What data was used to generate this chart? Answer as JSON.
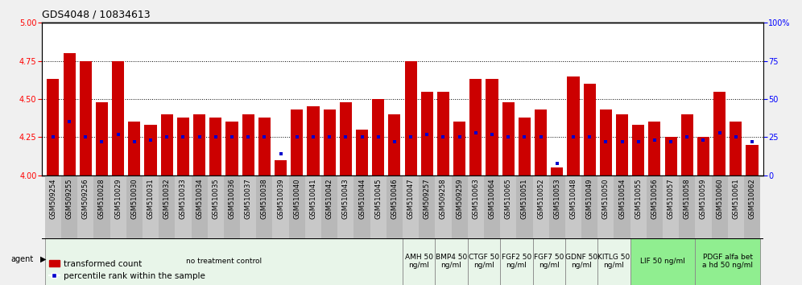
{
  "title": "GDS4048 / 10834613",
  "samples": [
    "GSM509254",
    "GSM509255",
    "GSM509256",
    "GSM510028",
    "GSM510029",
    "GSM510030",
    "GSM510031",
    "GSM510032",
    "GSM510033",
    "GSM510034",
    "GSM510035",
    "GSM510036",
    "GSM510037",
    "GSM510038",
    "GSM510039",
    "GSM510040",
    "GSM510041",
    "GSM510042",
    "GSM510043",
    "GSM510044",
    "GSM510045",
    "GSM510046",
    "GSM510047",
    "GSM509257",
    "GSM509258",
    "GSM509259",
    "GSM510063",
    "GSM510064",
    "GSM510065",
    "GSM510051",
    "GSM510052",
    "GSM510053",
    "GSM510048",
    "GSM510049",
    "GSM510050",
    "GSM510054",
    "GSM510055",
    "GSM510056",
    "GSM510057",
    "GSM510058",
    "GSM510059",
    "GSM510060",
    "GSM510061",
    "GSM510062"
  ],
  "bar_heights": [
    4.63,
    4.8,
    4.75,
    4.48,
    4.75,
    4.35,
    4.33,
    4.4,
    4.38,
    4.4,
    4.38,
    4.35,
    4.4,
    4.38,
    4.1,
    4.43,
    4.45,
    4.43,
    4.48,
    4.3,
    4.5,
    4.4,
    4.75,
    4.55,
    4.55,
    4.35,
    4.63,
    4.63,
    4.48,
    4.38,
    4.43,
    4.05,
    4.65,
    4.6,
    4.43,
    4.4,
    4.33,
    4.35,
    4.25,
    4.4,
    4.25,
    4.55,
    4.35,
    4.2
  ],
  "percentile_ranks": [
    25,
    35,
    25,
    22,
    27,
    22,
    23,
    25,
    25,
    25,
    25,
    25,
    25,
    25,
    14,
    25,
    25,
    25,
    25,
    25,
    25,
    22,
    25,
    27,
    25,
    25,
    28,
    27,
    25,
    25,
    25,
    8,
    25,
    25,
    22,
    22,
    22,
    23,
    22,
    25,
    23,
    28,
    25,
    22
  ],
  "agent_groups": [
    {
      "label": "no treatment control",
      "start": 0,
      "end": 22,
      "color": "#e8f5e9",
      "bright": false
    },
    {
      "label": "AMH 50\nng/ml",
      "start": 22,
      "end": 24,
      "color": "#e8f5e9",
      "bright": false
    },
    {
      "label": "BMP4 50\nng/ml",
      "start": 24,
      "end": 26,
      "color": "#e8f5e9",
      "bright": false
    },
    {
      "label": "CTGF 50\nng/ml",
      "start": 26,
      "end": 28,
      "color": "#e8f5e9",
      "bright": false
    },
    {
      "label": "FGF2 50\nng/ml",
      "start": 28,
      "end": 30,
      "color": "#e8f5e9",
      "bright": false
    },
    {
      "label": "FGF7 50\nng/ml",
      "start": 30,
      "end": 32,
      "color": "#e8f5e9",
      "bright": false
    },
    {
      "label": "GDNF 50\nng/ml",
      "start": 32,
      "end": 34,
      "color": "#e8f5e9",
      "bright": false
    },
    {
      "label": "KITLG 50\nng/ml",
      "start": 34,
      "end": 36,
      "color": "#e8f5e9",
      "bright": false
    },
    {
      "label": "LIF 50 ng/ml",
      "start": 36,
      "end": 40,
      "color": "#90ee90",
      "bright": true
    },
    {
      "label": "PDGF alfa bet\na hd 50 ng/ml",
      "start": 40,
      "end": 44,
      "color": "#90ee90",
      "bright": true
    }
  ],
  "ylim": [
    4.0,
    5.0
  ],
  "yticks_left": [
    4.0,
    4.25,
    4.5,
    4.75,
    5.0
  ],
  "yticks_right": [
    0,
    25,
    50,
    75,
    100
  ],
  "bar_color": "#cc0000",
  "marker_color": "#0000cc",
  "background_color": "#f0f0f0",
  "plot_bg_color": "#ffffff",
  "title_fontsize": 9,
  "tick_fontsize": 6,
  "agent_label_fontsize": 6.5,
  "legend_fontsize": 7.5
}
